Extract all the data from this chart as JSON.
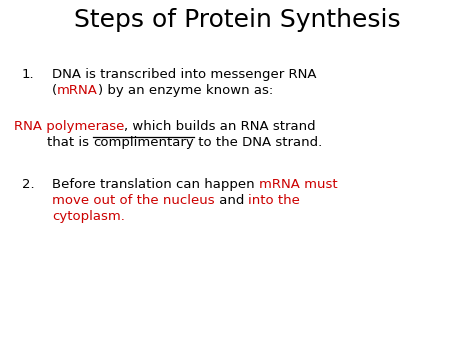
{
  "title": "Steps of Protein Synthesis",
  "title_fontsize": 18,
  "title_color": "#000000",
  "background_color": "#ffffff",
  "black": "#000000",
  "red": "#cc0000",
  "body_fontsize": 9.5,
  "figsize": [
    4.74,
    3.55
  ],
  "dpi": 100,
  "item1_line1": "DNA is transcribed into messenger RNA",
  "item1_line2_before": "(",
  "item1_line2_red": "mRNA",
  "item1_line2_after": ") by an enzyme known as:",
  "para1_red": "RNA polymerase",
  "para1_black": ", which builds an RNA strand",
  "para2_pre": "that is ",
  "para2_underline": "complimentary",
  "para2_post": " to the DNA strand.",
  "item2_line1_black": "Before translation can happen ",
  "item2_line1_red": "mRNA must",
  "item2_line2_red1": "move out of the nucleus",
  "item2_line2_black": " and ",
  "item2_line2_red2": "into the",
  "item2_line3": "cytoplasm."
}
